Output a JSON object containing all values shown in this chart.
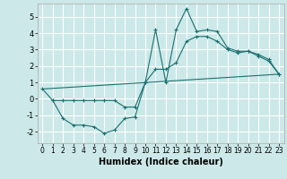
{
  "title": "",
  "xlabel": "Humidex (Indice chaleur)",
  "background_color": "#cce8e8",
  "grid_color": "#ffffff",
  "line_color": "#1a7070",
  "xlim": [
    -0.5,
    23.5
  ],
  "ylim": [
    -2.7,
    5.8
  ],
  "xticks": [
    0,
    1,
    2,
    3,
    4,
    5,
    6,
    7,
    8,
    9,
    10,
    11,
    12,
    13,
    14,
    15,
    16,
    17,
    18,
    19,
    20,
    21,
    22,
    23
  ],
  "yticks": [
    -2,
    -1,
    0,
    1,
    2,
    3,
    4,
    5
  ],
  "line1_x": [
    0,
    1,
    2,
    3,
    4,
    5,
    6,
    7,
    8,
    9,
    10,
    11,
    12,
    13,
    14,
    15,
    16,
    17,
    18,
    19,
    20,
    21,
    22,
    23
  ],
  "line1_y": [
    0.6,
    -0.1,
    -1.2,
    -1.6,
    -1.6,
    -1.7,
    -2.1,
    -1.9,
    -1.2,
    -1.1,
    1.0,
    4.2,
    1.0,
    4.2,
    5.5,
    4.1,
    4.2,
    4.1,
    3.1,
    2.9,
    2.9,
    2.6,
    2.3,
    1.5
  ],
  "line2_x": [
    0,
    23
  ],
  "line2_y": [
    0.6,
    1.5
  ],
  "line3_x": [
    1,
    2,
    3,
    4,
    5,
    6,
    7,
    8,
    9,
    10,
    11,
    12,
    13,
    14,
    15,
    16,
    17,
    18,
    19,
    20,
    21,
    22,
    23
  ],
  "line3_y": [
    -0.1,
    -0.1,
    -0.1,
    -0.1,
    -0.1,
    -0.1,
    -0.1,
    -0.5,
    -0.5,
    1.0,
    1.8,
    1.8,
    2.2,
    3.5,
    3.8,
    3.8,
    3.5,
    3.0,
    2.8,
    2.9,
    2.7,
    2.4,
    1.5
  ]
}
